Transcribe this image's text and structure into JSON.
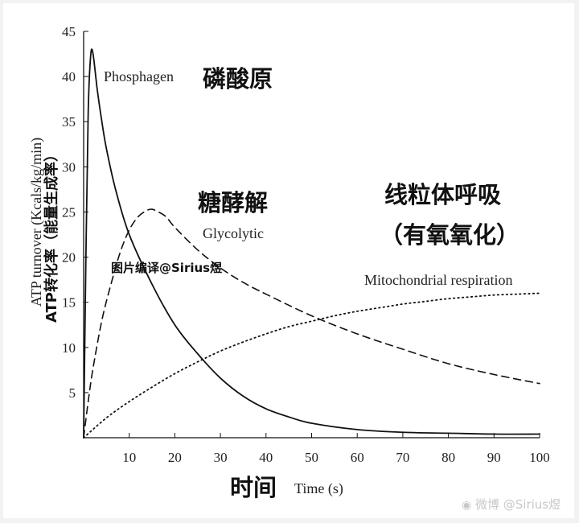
{
  "chart_data": {
    "type": "line",
    "xlabel": "Time (s)",
    "xlabel_cn": "时间",
    "ylabel": "ATP turnover (Kcals/kg/min)",
    "ylabel_cn": "ATP转化率（能量生成率）",
    "xlim": [
      0,
      100
    ],
    "ylim": [
      0,
      45
    ],
    "xticks": [
      10,
      20,
      30,
      40,
      50,
      60,
      70,
      80,
      90,
      100
    ],
    "yticks": [
      5,
      10,
      15,
      20,
      25,
      30,
      35,
      40,
      45
    ],
    "series": [
      {
        "name": "Phosphagen",
        "label_cn": "磷酸原",
        "style": "solid",
        "x": [
          0,
          0.5,
          1,
          1.5,
          2,
          3,
          4,
          5,
          7,
          10,
          15,
          20,
          25,
          30,
          35,
          40,
          45,
          50,
          60,
          70,
          80,
          90,
          100
        ],
        "y": [
          0,
          20,
          36,
          42,
          42.7,
          38.5,
          35,
          32,
          27.5,
          22.5,
          17,
          12.5,
          9.3,
          6.6,
          4.6,
          3.2,
          2.3,
          1.6,
          0.9,
          0.6,
          0.5,
          0.4,
          0.4
        ]
      },
      {
        "name": "Glycolytic",
        "label_cn": "糖酵解",
        "style": "dashed",
        "x": [
          0,
          1,
          2,
          4,
          6,
          8,
          10,
          12,
          14,
          15,
          16,
          18,
          20,
          25,
          30,
          35,
          40,
          50,
          60,
          70,
          80,
          90,
          100
        ],
        "y": [
          0,
          4,
          7.5,
          13,
          17,
          20.5,
          23,
          24.5,
          25.2,
          25.3,
          25.1,
          24.5,
          23.3,
          20.8,
          18.8,
          17.2,
          15.9,
          13.5,
          11.5,
          9.8,
          8.2,
          7.0,
          6.0
        ]
      },
      {
        "name": "Mitochondrial respiration",
        "label_cn": "线粒体呼吸",
        "label_cn_2": "（有氧氧化）",
        "style": "dotted",
        "x": [
          0,
          5,
          10,
          15,
          20,
          25,
          30,
          35,
          40,
          45,
          50,
          55,
          60,
          65,
          70,
          75,
          80,
          85,
          90,
          95,
          100
        ],
        "y": [
          0,
          2.2,
          4.0,
          5.6,
          7.1,
          8.4,
          9.6,
          10.6,
          11.5,
          12.3,
          12.9,
          13.5,
          14.0,
          14.4,
          14.8,
          15.1,
          15.4,
          15.6,
          15.8,
          15.9,
          16.0
        ]
      }
    ],
    "annotations": [
      "图片编译@Sirius煜"
    ]
  },
  "watermark": "微博 @Sirius煜"
}
